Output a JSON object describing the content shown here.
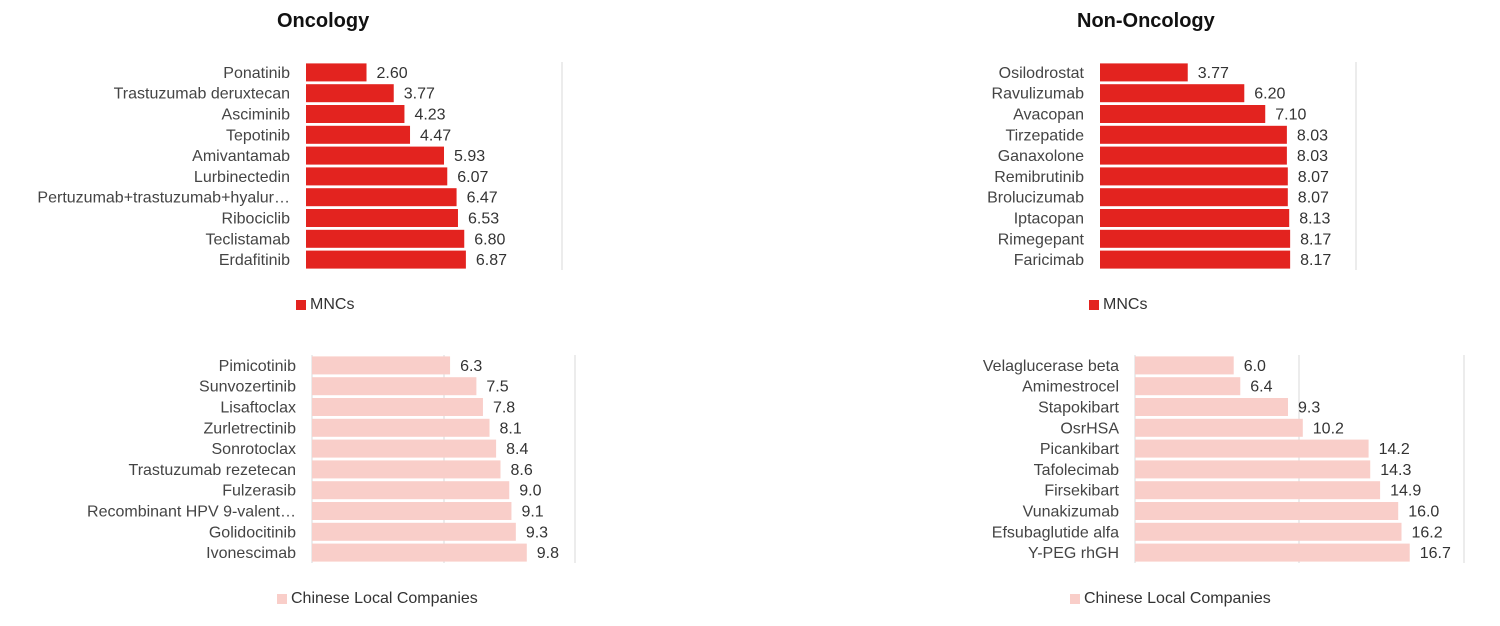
{
  "titles": {
    "left": "Oncology",
    "right": "Non-Oncology"
  },
  "legends": {
    "mnc": "MNCs",
    "local": "Chinese Local Companies"
  },
  "colors": {
    "mnc": "#e3231f",
    "local": "#f9cec9",
    "grid": "#d9d9d9"
  },
  "chart_data": [
    {
      "type": "bar",
      "orientation": "horizontal",
      "title": "Oncology",
      "legend": "MNCs",
      "categories": [
        "Ponatinib",
        "Trastuzumab deruxtecan",
        "Asciminib",
        "Tepotinib",
        "Amivantamab",
        "Lurbinectedin",
        "Pertuzumab+trastuzumab+hyalur…",
        "Ribociclib",
        "Teclistamab",
        "Erdafitinib"
      ],
      "values": [
        2.6,
        3.77,
        4.23,
        4.47,
        5.93,
        6.07,
        6.47,
        6.53,
        6.8,
        6.87
      ],
      "value_labels": [
        "2.60",
        "3.77",
        "4.23",
        "4.47",
        "5.93",
        "6.07",
        "6.47",
        "6.53",
        "6.80",
        "6.87"
      ],
      "xlim": [
        0,
        11
      ]
    },
    {
      "type": "bar",
      "orientation": "horizontal",
      "title": "Non-Oncology",
      "legend": "MNCs",
      "categories": [
        "Osilodrostat",
        "Ravulizumab",
        "Avacopan",
        "Tirzepatide",
        "Ganaxolone",
        "Remibrutinib",
        "Brolucizumab",
        "Iptacopan",
        "Rimegepant",
        "Faricimab"
      ],
      "values": [
        3.77,
        6.2,
        7.1,
        8.03,
        8.03,
        8.07,
        8.07,
        8.13,
        8.17,
        8.17
      ],
      "value_labels": [
        "3.77",
        "6.20",
        "7.10",
        "8.03",
        "8.03",
        "8.07",
        "8.07",
        "8.13",
        "8.17",
        "8.17"
      ],
      "xlim": [
        0,
        11
      ]
    },
    {
      "type": "bar",
      "orientation": "horizontal",
      "legend": "Chinese Local Companies",
      "categories": [
        "Pimicotinib",
        "Sunvozertinib",
        "Lisaftoclax",
        "Zurletrectinib",
        "Sonrotoclax",
        "Trastuzumab rezetecan",
        "Fulzerasib",
        "Recombinant HPV 9-valent…",
        "Golidocitinib",
        "Ivonescimab"
      ],
      "values": [
        6.3,
        7.5,
        7.8,
        8.1,
        8.4,
        8.6,
        9.0,
        9.1,
        9.3,
        9.8
      ],
      "value_labels": [
        "6.3",
        "7.5",
        "7.8",
        "8.1",
        "8.4",
        "8.6",
        "9.0",
        "9.1",
        "9.3",
        "9.8"
      ],
      "xlim": [
        0,
        12
      ]
    },
    {
      "type": "bar",
      "orientation": "horizontal",
      "legend": "Chinese Local Companies",
      "categories": [
        "Velaglucerase beta",
        "Amimestrocel",
        "Stapokibart",
        "OsrHSA",
        "Picankibart",
        "Tafolecimab",
        "Firsekibart",
        "Vunakizumab",
        "Efsubaglutide alfa",
        "Y-PEG rhGH"
      ],
      "values": [
        6.0,
        6.4,
        9.3,
        10.2,
        14.2,
        14.3,
        14.9,
        16.0,
        16.2,
        16.7
      ],
      "value_labels": [
        "6.0",
        "6.4",
        "9.3",
        "10.2",
        "14.2",
        "14.3",
        "14.9",
        "16.0",
        "16.2",
        "16.7"
      ],
      "xlim": [
        0,
        20
      ]
    }
  ]
}
